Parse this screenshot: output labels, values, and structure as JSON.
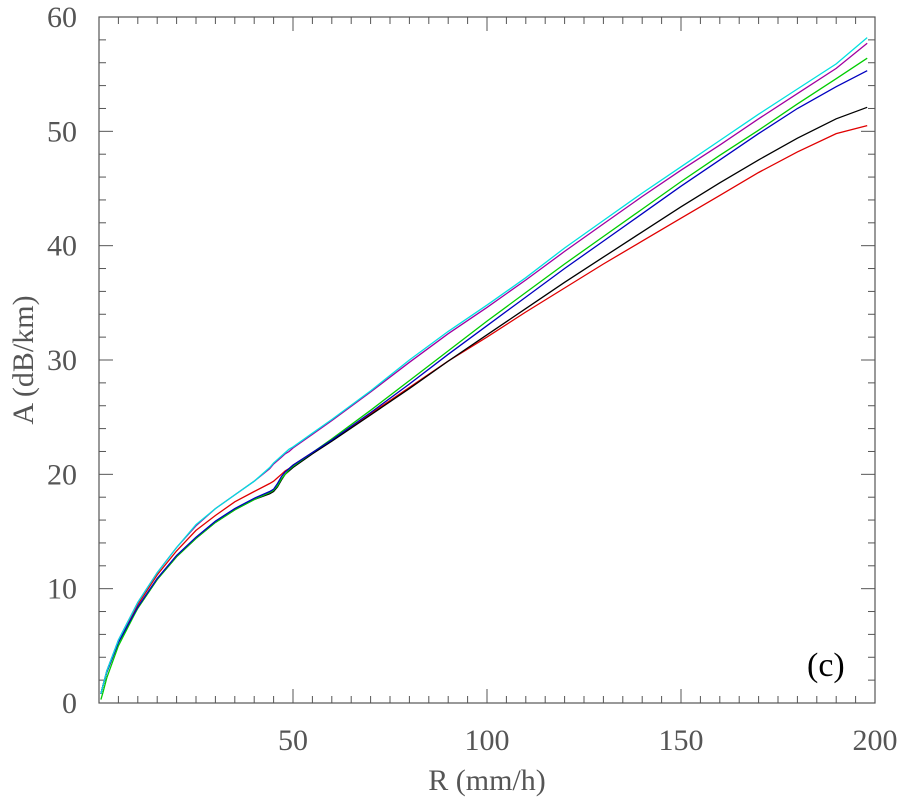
{
  "chart_data": {
    "type": "line",
    "xlabel": "R (mm/h)",
    "ylabel": "A (dB/km)",
    "annotation": "(c)",
    "xlim": [
      0,
      200
    ],
    "ylim": [
      0,
      60
    ],
    "xticks": [
      50,
      100,
      150,
      200
    ],
    "yticks": [
      0,
      10,
      20,
      30,
      40,
      50,
      60
    ],
    "x_minor_step": 5,
    "y_minor_step": 2,
    "grid": false,
    "x": [
      0.5,
      1,
      2,
      5,
      10,
      15,
      20,
      25,
      30,
      35,
      40,
      44,
      45,
      46,
      47,
      48,
      49,
      50,
      55,
      60,
      70,
      80,
      90,
      100,
      110,
      120,
      130,
      140,
      150,
      160,
      170,
      180,
      190,
      198
    ],
    "series": [
      {
        "color": "#00e0e0",
        "values": [
          0.8,
          1.5,
          2.8,
          5.5,
          8.8,
          11.4,
          13.6,
          15.6,
          17.0,
          18.2,
          19.4,
          20.6,
          21.0,
          21.3,
          21.6,
          21.9,
          22.2,
          22.4,
          23.6,
          24.8,
          27.3,
          30.0,
          32.5,
          34.8,
          37.2,
          39.8,
          42.2,
          44.6,
          46.9,
          49.2,
          51.5,
          53.7,
          55.9,
          58.2
        ]
      },
      {
        "color": "#a000a0",
        "values": [
          0.8,
          1.5,
          2.8,
          5.5,
          8.8,
          11.4,
          13.6,
          15.5,
          17.0,
          18.2,
          19.4,
          20.5,
          20.9,
          21.2,
          21.5,
          21.8,
          22.0,
          22.3,
          23.5,
          24.7,
          27.2,
          29.8,
          32.3,
          34.6,
          37.0,
          39.5,
          41.9,
          44.3,
          46.6,
          48.8,
          51.1,
          53.3,
          55.5,
          57.7
        ]
      },
      {
        "color": "#0000c0",
        "values": [
          0.8,
          1.5,
          2.7,
          5.3,
          8.4,
          10.9,
          12.9,
          14.5,
          15.9,
          17.0,
          17.9,
          18.5,
          18.7,
          19.2,
          19.8,
          20.2,
          20.5,
          20.8,
          21.9,
          23.0,
          25.4,
          27.9,
          30.5,
          33.0,
          35.5,
          38.0,
          40.4,
          42.8,
          45.2,
          47.5,
          49.8,
          52.0,
          53.9,
          55.3
        ]
      },
      {
        "color": "#00cc00",
        "values": [
          0.3,
          0.9,
          2.2,
          5.0,
          8.3,
          10.8,
          12.8,
          14.4,
          15.8,
          16.9,
          17.8,
          18.4,
          18.6,
          19.0,
          19.6,
          20.0,
          20.4,
          20.7,
          21.9,
          23.1,
          25.6,
          28.2,
          30.8,
          33.4,
          35.9,
          38.4,
          40.8,
          43.2,
          45.6,
          47.9,
          50.1,
          52.4,
          54.6,
          56.4
        ]
      },
      {
        "color": "#000000",
        "values": [
          0.8,
          1.5,
          2.7,
          5.3,
          8.3,
          10.8,
          12.8,
          14.4,
          15.8,
          16.9,
          17.8,
          18.3,
          18.5,
          18.9,
          19.5,
          20.0,
          20.3,
          20.6,
          21.8,
          22.9,
          25.2,
          27.5,
          29.9,
          32.2,
          34.5,
          36.8,
          39.0,
          41.2,
          43.4,
          45.5,
          47.5,
          49.4,
          51.1,
          52.1
        ]
      },
      {
        "color": "#e00000",
        "values": [
          0.8,
          1.5,
          2.8,
          5.4,
          8.6,
          11.2,
          13.3,
          15.1,
          16.4,
          17.6,
          18.5,
          19.2,
          19.4,
          19.7,
          20.0,
          20.3,
          20.5,
          20.8,
          21.9,
          23.0,
          25.3,
          27.6,
          29.9,
          32.0,
          34.2,
          36.3,
          38.4,
          40.4,
          42.4,
          44.4,
          46.4,
          48.2,
          49.8,
          50.5
        ]
      }
    ]
  }
}
